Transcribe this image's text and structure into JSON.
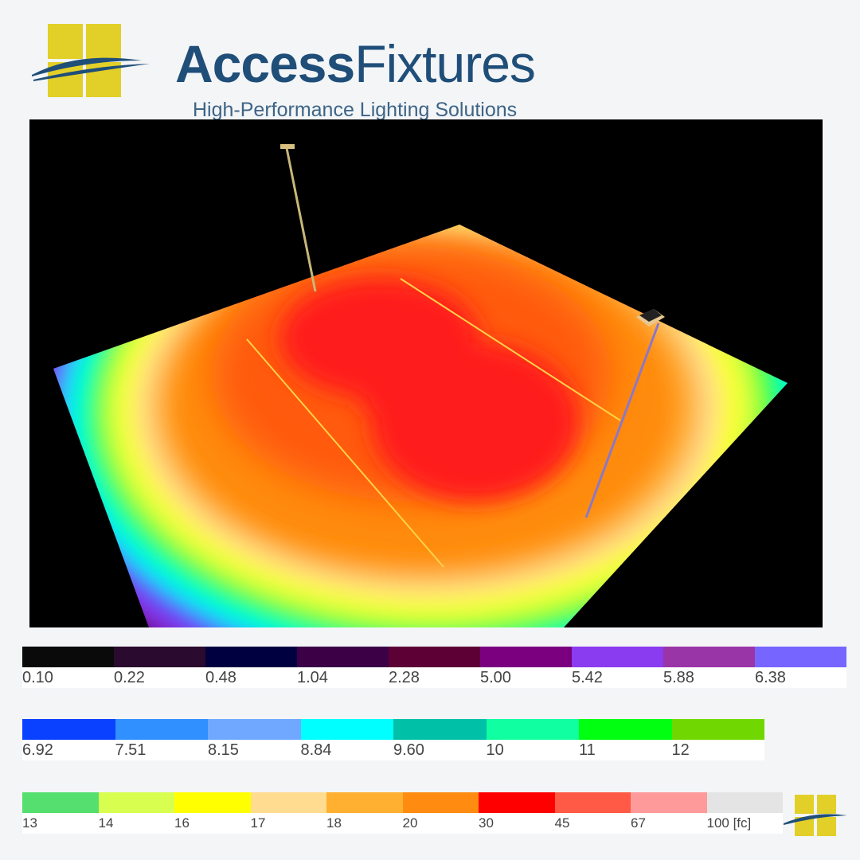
{
  "brand": {
    "name_part1": "Access",
    "name_part2": "Fixtures",
    "tagline": "High-Performance Lighting Solutions",
    "colors": {
      "primary": "#1f4e79",
      "logo_yellow": "#e2cf28"
    }
  },
  "render": {
    "description_icon": "photometric-render",
    "background": "#000000"
  },
  "legend": {
    "unit": "[fc]",
    "rows": [
      {
        "swatches": [
          {
            "label": "0.10",
            "color": "#0a0a0a"
          },
          {
            "label": "0.22",
            "color": "#2a0a2e"
          },
          {
            "label": "0.48",
            "color": "#000040"
          },
          {
            "label": "1.04",
            "color": "#3b0045"
          },
          {
            "label": "2.28",
            "color": "#5c0035"
          },
          {
            "label": "5.00",
            "color": "#7a0080"
          },
          {
            "label": "5.42",
            "color": "#8a3cf0"
          },
          {
            "label": "5.88",
            "color": "#9a35a8"
          },
          {
            "label": "6.38",
            "color": "#7666ff"
          }
        ]
      },
      {
        "swatches": [
          {
            "label": "6.92",
            "color": "#0a40ff"
          },
          {
            "label": "7.51",
            "color": "#3090ff"
          },
          {
            "label": "8.15",
            "color": "#70a8ff"
          },
          {
            "label": "8.84",
            "color": "#00ffff"
          },
          {
            "label": "9.60",
            "color": "#00c0a8"
          },
          {
            "label": "10",
            "color": "#10ffa0"
          },
          {
            "label": "11",
            "color": "#00ff10"
          },
          {
            "label": "12",
            "color": "#70d800"
          }
        ]
      },
      {
        "swatches": [
          {
            "label": "13",
            "color": "#55df6e"
          },
          {
            "label": "14",
            "color": "#d8ff50"
          },
          {
            "label": "16",
            "color": "#ffff00"
          },
          {
            "label": "17",
            "color": "#ffdc90"
          },
          {
            "label": "18",
            "color": "#ffb030"
          },
          {
            "label": "20",
            "color": "#ff8c10"
          },
          {
            "label": "30",
            "color": "#ff0000"
          },
          {
            "label": "45",
            "color": "#ff5a46"
          },
          {
            "label": "67",
            "color": "#ff9a9a"
          },
          {
            "label": "100 [fc]",
            "color": "#e4e4e4"
          }
        ]
      }
    ]
  }
}
